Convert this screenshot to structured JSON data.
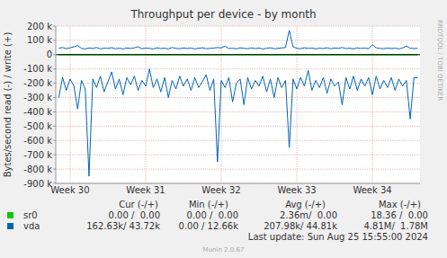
{
  "chart_data": {
    "type": "line",
    "title": "Throughput per device - by month",
    "y_label": "Bytes/second read (-) / write (+)",
    "x": [
      29.85,
      29.9,
      29.95,
      30.0,
      30.05,
      30.1,
      30.15,
      30.2,
      30.25,
      30.3,
      30.35,
      30.4,
      30.45,
      30.5,
      30.55,
      30.6,
      30.65,
      30.7,
      30.75,
      30.8,
      30.85,
      30.9,
      30.95,
      31.0,
      31.05,
      31.1,
      31.15,
      31.2,
      31.25,
      31.3,
      31.35,
      31.4,
      31.45,
      31.5,
      31.55,
      31.6,
      31.65,
      31.7,
      31.75,
      31.8,
      31.85,
      31.9,
      31.95,
      32.0,
      32.05,
      32.1,
      32.15,
      32.2,
      32.25,
      32.3,
      32.35,
      32.4,
      32.45,
      32.5,
      32.55,
      32.6,
      32.65,
      32.7,
      32.75,
      32.8,
      32.85,
      32.9,
      32.95,
      33.0,
      33.05,
      33.1,
      33.15,
      33.2,
      33.25,
      33.3,
      33.35,
      33.4,
      33.45,
      33.5,
      33.55,
      33.6,
      33.65,
      33.7,
      33.75,
      33.8,
      33.85,
      33.9,
      33.95,
      34.0,
      34.05,
      34.1,
      34.15,
      34.2,
      34.25,
      34.3,
      34.35,
      34.4,
      34.45,
      34.5,
      34.55,
      34.6
    ],
    "series": [
      {
        "name": "sr0",
        "color": "#00cc00",
        "values": [
          0,
          0,
          0,
          0,
          0,
          0,
          0,
          0,
          0,
          0,
          0,
          0,
          0,
          0,
          0,
          0,
          0,
          0,
          0,
          0,
          0,
          0,
          0,
          0,
          0,
          0,
          0,
          0,
          0,
          0,
          0,
          0,
          0,
          0,
          0,
          0,
          0,
          0,
          0,
          0,
          0,
          0,
          0,
          0,
          0,
          0,
          0,
          0,
          0,
          0,
          0,
          0,
          0,
          0,
          0,
          0,
          0,
          0,
          0,
          0,
          0,
          0,
          0,
          0,
          0,
          0,
          0,
          0,
          0,
          0,
          0,
          0,
          0,
          0,
          0,
          0,
          0,
          0,
          0,
          0,
          0,
          0,
          0,
          0,
          0,
          0,
          0,
          0,
          0,
          0,
          0,
          0,
          0,
          0,
          0,
          0
        ]
      },
      {
        "name": "sr0",
        "color": "#00cc00",
        "values": [
          0,
          0,
          0,
          0,
          0,
          0,
          0,
          0,
          0,
          0,
          0,
          0,
          0,
          0,
          0,
          0,
          0,
          0,
          0,
          0,
          0,
          0,
          0,
          0,
          0,
          0,
          0,
          0,
          0,
          0,
          0,
          0,
          0,
          0,
          0,
          0,
          0,
          0,
          0,
          0,
          0,
          0,
          0,
          0,
          0,
          0,
          0,
          0,
          0,
          0,
          0,
          0,
          0,
          0,
          0,
          0,
          0,
          0,
          0,
          0,
          0,
          0,
          0,
          0,
          0,
          0,
          0,
          0,
          0,
          0,
          0,
          0,
          0,
          0,
          0,
          0,
          0,
          0,
          0,
          0,
          0,
          0,
          0,
          0,
          0,
          0,
          0,
          0,
          0,
          0,
          0,
          0,
          0,
          0,
          0,
          0
        ]
      },
      {
        "name": "vda",
        "color": "#0066b3",
        "values": [
          -300000,
          -160000,
          -250000,
          -170000,
          -220000,
          -380000,
          -180000,
          -240000,
          -850000,
          -170000,
          -230000,
          -150000,
          -260000,
          -190000,
          -120000,
          -240000,
          -170000,
          -280000,
          -160000,
          -210000,
          -150000,
          -250000,
          -180000,
          -220000,
          -100000,
          -230000,
          -170000,
          -260000,
          -160000,
          -300000,
          -180000,
          -240000,
          -150000,
          -220000,
          -170000,
          -250000,
          -160000,
          -230000,
          -190000,
          -140000,
          -250000,
          -170000,
          -750000,
          -180000,
          -230000,
          -160000,
          -330000,
          -200000,
          -170000,
          -350000,
          -160000,
          -240000,
          -180000,
          -220000,
          -150000,
          -260000,
          -170000,
          -300000,
          -160000,
          -230000,
          -180000,
          -650000,
          -170000,
          -240000,
          -160000,
          -220000,
          -110000,
          -250000,
          -180000,
          -230000,
          -160000,
          -270000,
          -170000,
          -220000,
          -190000,
          -350000,
          -160000,
          -240000,
          -150000,
          -250000,
          -170000,
          -220000,
          -160000,
          -280000,
          -150000,
          -240000,
          -180000,
          -230000,
          -160000,
          -250000,
          -170000,
          -220000,
          -180000,
          -450000,
          -160000,
          -163000
        ]
      },
      {
        "name": "vda",
        "color": "#0066b3",
        "values": [
          45000,
          50000,
          42000,
          48000,
          55000,
          65000,
          44000,
          40000,
          47000,
          43000,
          50000,
          41000,
          46000,
          44000,
          49000,
          42000,
          45000,
          40000,
          47000,
          43000,
          48000,
          55000,
          42000,
          46000,
          44000,
          40000,
          48000,
          43000,
          45000,
          41000,
          50000,
          44000,
          42000,
          47000,
          43000,
          46000,
          40000,
          45000,
          48000,
          42000,
          44000,
          46000,
          50000,
          47000,
          60000,
          43000,
          45000,
          41000,
          48000,
          44000,
          42000,
          47000,
          43000,
          46000,
          40000,
          45000,
          48000,
          42000,
          44000,
          47000,
          50000,
          170000,
          55000,
          45000,
          42000,
          48000,
          44000,
          46000,
          41000,
          45000,
          43000,
          48000,
          42000,
          46000,
          44000,
          50000,
          43000,
          45000,
          41000,
          47000,
          44000,
          46000,
          42000,
          70000,
          48000,
          44000,
          42000,
          46000,
          43000,
          45000,
          41000,
          47000,
          60000,
          45000,
          43000,
          44000
        ]
      }
    ],
    "xlim": [
      29.81,
      34.63
    ],
    "xticks": [
      {
        "value": 30,
        "label": "Week 30"
      },
      {
        "value": 31,
        "label": "Week 31"
      },
      {
        "value": 32,
        "label": "Week 32"
      },
      {
        "value": 33,
        "label": "Week 33"
      },
      {
        "value": 34,
        "label": "Week 34"
      }
    ],
    "ylim": [
      -900000,
      200000
    ],
    "yticks": [
      {
        "value": 200000,
        "label": "200 k"
      },
      {
        "value": 100000,
        "label": "100 k"
      },
      0,
      {
        "value": -100000,
        "label": "-100 k"
      },
      {
        "value": -200000,
        "label": "-200 k"
      },
      {
        "value": -300000,
        "label": "-300 k"
      },
      {
        "value": -400000,
        "label": "-400 k"
      },
      {
        "value": -500000,
        "label": "-500 k"
      },
      {
        "value": -600000,
        "label": "-600 k"
      },
      {
        "value": -700000,
        "label": "-700 k"
      },
      {
        "value": -800000,
        "label": "-800 k"
      },
      {
        "value": -900000,
        "label": "-900 k"
      }
    ],
    "grid": true,
    "legend_table": {
      "headers": [
        "Cur (-/+)",
        "Min (-/+)",
        "Avg (-/+)",
        "Max (-/+)"
      ],
      "rows": [
        [
          "0.00 /  0.00",
          "0.00 /  0.00",
          "2.36m/  0.00",
          "18.36 /  0.00"
        ],
        [
          "162.63k/ 43.72k",
          "0.00 / 12.66k",
          "207.98k/ 44.81k",
          "4.81M/  1.78M"
        ]
      ]
    },
    "last_update": "Last update: Sun Aug 25 15:55:00 2024",
    "footer": "Munin 2.0.67",
    "watermark": "RRDTOOL / TOBI OETIKER"
  }
}
